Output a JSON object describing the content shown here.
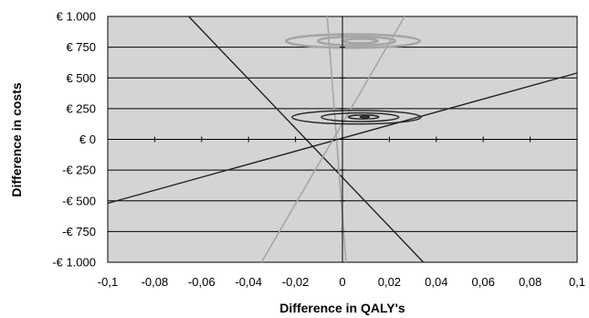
{
  "chart_data": {
    "type": "line",
    "title": "",
    "xlabel": "Difference in QALY's",
    "ylabel": "Difference in costs",
    "xlim": [
      -0.1,
      0.1
    ],
    "ylim": [
      -1000,
      1000
    ],
    "grid": "horizontal",
    "legend": "none",
    "x_ticks": [
      {
        "value": -0.1,
        "label": "-0,1"
      },
      {
        "value": -0.08,
        "label": "-0,08"
      },
      {
        "value": -0.06,
        "label": "-0,06"
      },
      {
        "value": -0.04,
        "label": "-0,04"
      },
      {
        "value": -0.02,
        "label": "-0,02"
      },
      {
        "value": 0,
        "label": "0"
      },
      {
        "value": 0.02,
        "label": "0,02"
      },
      {
        "value": 0.04,
        "label": "0,04"
      },
      {
        "value": 0.06,
        "label": "0,06"
      },
      {
        "value": 0.08,
        "label": "0,08"
      },
      {
        "value": 0.1,
        "label": "0,1"
      }
    ],
    "y_ticks": [
      {
        "value": 1000,
        "label": "€ 1.000"
      },
      {
        "value": 750,
        "label": "€ 750"
      },
      {
        "value": 500,
        "label": "€ 500"
      },
      {
        "value": 250,
        "label": "€ 250"
      },
      {
        "value": 0,
        "label": "€ 0"
      },
      {
        "value": -250,
        "label": "-€ 250"
      },
      {
        "value": -500,
        "label": "-€ 500"
      },
      {
        "value": -750,
        "label": "-€ 750"
      },
      {
        "value": -1000,
        "label": "-€ 1.000"
      }
    ],
    "colors": {
      "plot_background": "#d4d4d4",
      "grid": "#000000",
      "dark_series": "#222222",
      "light_series": "#a6a6a6"
    },
    "series": [
      {
        "group": "dark",
        "kind": "line",
        "x": [
          -0.1,
          0.1
        ],
        "y": [
          -520,
          540
        ]
      },
      {
        "group": "dark",
        "kind": "line",
        "x": [
          -0.0655,
          0.0345
        ],
        "y": [
          1000,
          -1000
        ]
      },
      {
        "group": "light",
        "kind": "line",
        "x": [
          -0.0065,
          0.0015
        ],
        "y": [
          1000,
          -1000
        ]
      },
      {
        "group": "light",
        "kind": "line",
        "x": [
          -0.0345,
          0.0265
        ],
        "y": [
          -1000,
          1000
        ]
      },
      {
        "group": "dark",
        "kind": "ellipse",
        "cx": 0.006,
        "cy": 180,
        "rx": 0.0275,
        "ry": 55
      },
      {
        "group": "dark",
        "kind": "ellipse",
        "cx": 0.0075,
        "cy": 180,
        "rx": 0.0165,
        "ry": 35
      },
      {
        "group": "dark",
        "kind": "ellipse",
        "cx": 0.009,
        "cy": 182,
        "rx": 0.0065,
        "ry": 16
      },
      {
        "group": "dark",
        "kind": "ellipse",
        "cx": 0.0095,
        "cy": 182,
        "rx": 0.002,
        "ry": 6
      },
      {
        "group": "light",
        "kind": "ellipse",
        "cx": 0.0045,
        "cy": 800,
        "rx": 0.0285,
        "ry": 55
      },
      {
        "group": "light",
        "kind": "ellipse",
        "cx": 0.006,
        "cy": 800,
        "rx": 0.0165,
        "ry": 36
      },
      {
        "group": "light",
        "kind": "ellipse",
        "cx": 0.0075,
        "cy": 800,
        "rx": 0.0075,
        "ry": 18
      }
    ]
  }
}
